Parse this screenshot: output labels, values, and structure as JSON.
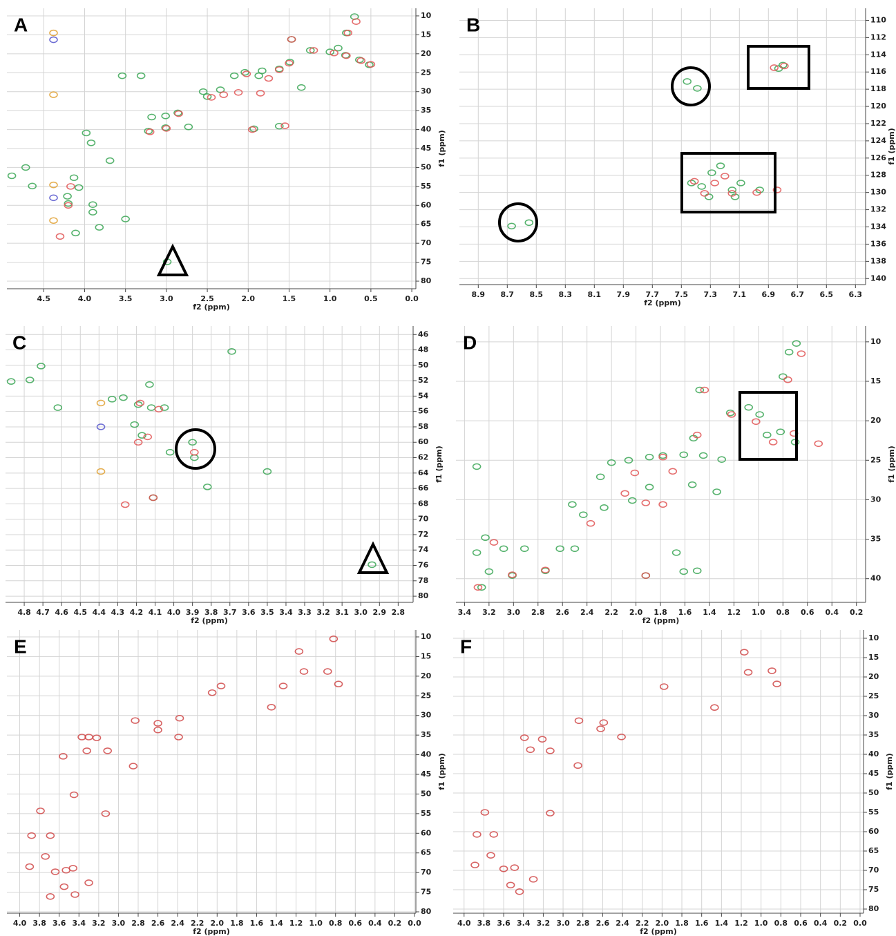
{
  "chart_data": [
    {
      "type": "scatter",
      "label": "A",
      "xlabel": "f2 (ppm)",
      "ylabel": "f1 (ppm)",
      "grid": true,
      "xlim": [
        4.95,
        -0.05
      ],
      "ylim": [
        8,
        82
      ],
      "xticks": [
        4.5,
        {
          "value": 4,
          "label": "4.0"
        },
        3.5,
        {
          "value": 3,
          "label": "3.0"
        },
        2.5,
        {
          "value": 2,
          "label": "2.0"
        },
        1.5,
        {
          "value": 1,
          "label": "1.0"
        },
        0.5,
        {
          "value": 0,
          "label": "0.0"
        }
      ],
      "yticks": [
        10,
        15,
        20,
        25,
        30,
        35,
        40,
        45,
        50,
        55,
        60,
        65,
        70,
        75,
        80
      ],
      "series": [
        {
          "color": "#3aa655",
          "x": [
            0.7,
            0.8,
            1.47,
            1.24,
            1.0,
            0.9,
            0.81,
            0.64,
            0.52,
            1.49,
            1.62,
            1.83,
            2.04,
            2.17,
            2.34,
            2.5,
            2.55,
            2.86,
            3.01,
            3.18,
            3.22,
            3.01,
            2.73,
            1.87,
            1.93,
            1.62,
            3.98,
            3.92,
            3.69,
            4.72,
            4.89,
            4.64,
            4.13,
            4.07,
            4.21,
            4.2,
            3.9,
            3.9,
            3.82,
            3.5,
            4.11,
            3.54,
            3.31,
            1.35,
            2.99
          ],
          "values": [
            10.2,
            14.5,
            16.2,
            19.1,
            19.5,
            18.5,
            20.4,
            21.6,
            22.9,
            22.2,
            24,
            24.5,
            24.9,
            25.8,
            29.5,
            31.3,
            30,
            35.6,
            36.4,
            36.7,
            40.4,
            39.5,
            39.3,
            25.8,
            39.8,
            39.1,
            40.9,
            43.5,
            48.2,
            50,
            52.2,
            54.9,
            52.7,
            55.3,
            57.6,
            59.5,
            59.8,
            61.8,
            65.8,
            63.6,
            67.3,
            25.8,
            25.8,
            28.9,
            74.9
          ]
        },
        {
          "color": "#e05555",
          "x": [
            0.68,
            0.78,
            1.47,
            1.2,
            0.95,
            0.8,
            0.62,
            0.5,
            1.5,
            1.62,
            1.75,
            2.02,
            2.3,
            2.45,
            2.85,
            3.0,
            3.2,
            1.95,
            1.55,
            4.17,
            4.2,
            4.3,
            2.12,
            1.85
          ],
          "values": [
            11.5,
            14.5,
            16.2,
            19.1,
            19.8,
            20.5,
            21.8,
            22.8,
            22.5,
            24.2,
            26.5,
            25.3,
            30.8,
            31.5,
            35.8,
            39.7,
            40.6,
            40,
            39,
            55,
            60,
            68.2,
            30.2,
            30.4
          ]
        },
        {
          "color": "#e0a030",
          "x": [
            4.38,
            4.38,
            4.38,
            4.38
          ],
          "values": [
            14.5,
            30.8,
            54.6,
            64
          ]
        },
        {
          "color": "#5555cc",
          "x": [
            4.38,
            4.38
          ],
          "values": [
            16.3,
            58
          ]
        }
      ]
    },
    {
      "type": "scatter",
      "label": "B",
      "xlabel": "f2 (ppm)",
      "ylabel": "f1 (ppm)",
      "grid": true,
      "xlim": [
        9.03,
        6.23
      ],
      "ylim": [
        108.6,
        140.7
      ],
      "xticks": [
        8.9,
        8.7,
        8.5,
        8.3,
        8.1,
        7.9,
        7.7,
        7.5,
        7.3,
        7.1,
        6.9,
        6.7,
        6.5,
        6.3
      ],
      "yticks": [
        110,
        112,
        114,
        116,
        118,
        120,
        122,
        124,
        126,
        128,
        130,
        132,
        134,
        136,
        138,
        140
      ],
      "series": [
        {
          "color": "#3aa655",
          "x": [
            7.46,
            7.39,
            6.8,
            6.83,
            7.23,
            7.29,
            7.43,
            7.36,
            7.31,
            7.15,
            7.13,
            7.09,
            6.96,
            8.67,
            8.55
          ],
          "values": [
            117.1,
            117.9,
            115.2,
            115.6,
            126.9,
            127.7,
            128.9,
            129.3,
            130.5,
            129.7,
            130.5,
            128.9,
            129.7,
            133.9,
            133.5
          ]
        },
        {
          "color": "#e05555",
          "x": [
            6.86,
            6.79,
            7.41,
            7.27,
            7.34,
            7.15,
            6.98,
            6.84,
            7.2
          ],
          "values": [
            115.5,
            115.3,
            128.7,
            128.9,
            130.1,
            130.1,
            130.0,
            129.7,
            128.1
          ]
        }
      ]
    },
    {
      "type": "scatter",
      "label": "C",
      "xlabel": "f2 (ppm)",
      "ylabel": "f1 (ppm)",
      "grid": true,
      "xlim": [
        4.9,
        2.72
      ],
      "ylim": [
        44.9,
        80.8
      ],
      "xticks": [
        4.8,
        4.7,
        4.6,
        4.5,
        4.4,
        4.3,
        4.2,
        4.1,
        {
          "value": 4,
          "label": "4.0"
        },
        3.9,
        3.8,
        3.7,
        3.6,
        3.5,
        3.4,
        3.3,
        3.2,
        3.1,
        {
          "value": 3,
          "label": "3.0"
        },
        2.9,
        2.8
      ],
      "yticks": [
        46,
        48,
        50,
        52,
        54,
        56,
        58,
        60,
        62,
        64,
        66,
        68,
        70,
        72,
        74,
        76,
        78,
        80
      ],
      "series": [
        {
          "color": "#3aa655",
          "x": [
            4.71,
            4.77,
            4.87,
            4.62,
            4.33,
            4.27,
            4.19,
            4.12,
            4.05,
            4.13,
            4.21,
            4.17,
            4.02,
            3.9,
            3.89,
            3.82,
            3.69,
            3.5,
            4.11,
            2.94
          ],
          "values": [
            50.1,
            51.9,
            52.1,
            55.5,
            54.4,
            54.2,
            55.1,
            55.5,
            55.5,
            52.5,
            57.7,
            59.1,
            61.3,
            60,
            62,
            65.8,
            48.2,
            63.8,
            67.2,
            75.9
          ]
        },
        {
          "color": "#e05555",
          "x": [
            4.18,
            4.08,
            4.14,
            4.19,
            3.89,
            4.26,
            4.11
          ],
          "values": [
            54.9,
            55.7,
            59.3,
            60,
            61.3,
            68.1,
            67.2
          ]
        },
        {
          "color": "#e0a030",
          "x": [
            4.39,
            4.39
          ],
          "values": [
            54.9,
            63.8
          ]
        },
        {
          "color": "#5555cc",
          "x": [
            4.39
          ],
          "values": [
            58
          ]
        }
      ]
    },
    {
      "type": "scatter",
      "label": "D",
      "xlabel": "f2 (ppm)",
      "ylabel": "f1 (ppm)",
      "grid": true,
      "xlim": [
        3.47,
        0.125
      ],
      "ylim": [
        8,
        43
      ],
      "xticks": [
        3.4,
        3.2,
        {
          "value": 3,
          "label": "3.0"
        },
        2.8,
        2.6,
        2.4,
        2.2,
        {
          "value": 2,
          "label": "2.0"
        },
        1.8,
        1.6,
        1.4,
        1.2,
        {
          "value": 1,
          "label": "1.0"
        },
        0.8,
        0.6,
        0.4,
        0.2
      ],
      "yticks": [
        10,
        15,
        20,
        25,
        30,
        35,
        40
      ],
      "series": [
        {
          "color": "#3aa655",
          "x": [
            0.69,
            0.75,
            0.8,
            1.48,
            1.23,
            1.08,
            0.99,
            0.93,
            0.82,
            0.7,
            1.53,
            1.45,
            1.3,
            1.61,
            1.78,
            1.89,
            2.06,
            2.2,
            2.29,
            1.54,
            1.34,
            1.89,
            2.03,
            2.26,
            2.52,
            2.43,
            3.3,
            3.23,
            3.3,
            3.08,
            2.91,
            2.62,
            2.5,
            3.2,
            3.26,
            2.74,
            1.67,
            1.61,
            1.92,
            1.5,
            3.01
          ],
          "values": [
            10.2,
            11.3,
            14.4,
            16.1,
            19,
            18.3,
            19.2,
            21.8,
            21.4,
            22.7,
            22.2,
            24.4,
            24.9,
            24.3,
            24.4,
            24.6,
            25,
            25.3,
            27.1,
            28.1,
            29,
            28.4,
            30.1,
            31,
            30.6,
            31.9,
            25.8,
            34.8,
            36.7,
            36.2,
            36.2,
            36.2,
            36.2,
            39.1,
            41.1,
            39,
            36.7,
            39.1,
            39.6,
            39,
            39.6
          ]
        },
        {
          "color": "#e05555",
          "x": [
            0.65,
            0.76,
            1.44,
            1.22,
            1.02,
            0.88,
            0.71,
            0.51,
            1.5,
            1.78,
            2.01,
            1.7,
            1.92,
            1.78,
            2.37,
            2.09,
            3.01,
            3.29,
            3.16,
            2.74,
            1.92
          ],
          "values": [
            11.5,
            14.8,
            16.1,
            19.2,
            20.1,
            22.7,
            21.6,
            22.9,
            21.8,
            24.6,
            26.6,
            26.4,
            30.4,
            30.6,
            33,
            29.2,
            39.5,
            41.1,
            35.4,
            38.9,
            39.6
          ]
        }
      ]
    },
    {
      "type": "scatter",
      "label": "E",
      "xlabel": "f2 (ppm)",
      "ylabel": "f1 (ppm)",
      "grid": true,
      "xlim": [
        4.13,
        -0.014
      ],
      "ylim": [
        8.24,
        80.35
      ],
      "xticks": [
        {
          "value": 4,
          "label": "4.0"
        },
        3.8,
        3.6,
        3.4,
        3.2,
        {
          "value": 3,
          "label": "3.0"
        },
        2.8,
        2.6,
        2.4,
        2.2,
        {
          "value": 2,
          "label": "2.0"
        },
        1.8,
        1.6,
        1.4,
        1.2,
        {
          "value": 1,
          "label": "1.0"
        },
        0.8,
        0.6,
        0.4,
        0.2,
        {
          "value": 0,
          "label": "0.0"
        }
      ],
      "yticks": [
        10,
        15,
        20,
        25,
        30,
        35,
        40,
        45,
        50,
        55,
        60,
        65,
        70,
        75,
        80
      ],
      "series": [
        {
          "color": "#d04848",
          "x": [
            1.17,
            1.12,
            0.88,
            0.77,
            1.96,
            1.33,
            1.45,
            2.83,
            2.38,
            2.6,
            2.6,
            2.39,
            3.37,
            3.3,
            3.22,
            3.32,
            3.11,
            2.85,
            3.56,
            3.45,
            3.13,
            3.79,
            3.88,
            3.69,
            3.74,
            3.9,
            3.64,
            3.53,
            3.46,
            3.55,
            3.3,
            3.44,
            3.69,
            0.82,
            2.05
          ],
          "values": [
            13.7,
            18.8,
            18.8,
            22,
            22.5,
            22.5,
            27.9,
            31.3,
            30.7,
            32,
            33.7,
            35.5,
            35.5,
            35.5,
            35.7,
            39,
            39,
            42.9,
            40.4,
            50.2,
            55,
            54.3,
            60.6,
            60.6,
            65.9,
            68.5,
            69.8,
            69.4,
            68.9,
            73.6,
            72.6,
            75.6,
            76.1,
            10.5,
            24.2
          ]
        }
      ]
    },
    {
      "type": "scatter",
      "label": "F",
      "xlabel": "f2 (ppm)",
      "ylabel": "f1 (ppm)",
      "grid": true,
      "xlim": [
        4.11,
        -0.035
      ],
      "ylim": [
        7.86,
        81.07
      ],
      "xticks": [
        {
          "value": 4,
          "label": "4.0"
        },
        3.8,
        3.6,
        3.4,
        3.2,
        {
          "value": 3,
          "label": "3.0"
        },
        2.8,
        2.6,
        2.4,
        2.2,
        {
          "value": 2,
          "label": "2.0"
        },
        1.8,
        1.6,
        1.4,
        1.2,
        {
          "value": 1,
          "label": "1.0"
        },
        0.8,
        0.6,
        0.4,
        0.2,
        {
          "value": 0,
          "label": "0.0"
        }
      ],
      "yticks": [
        10,
        15,
        20,
        25,
        30,
        35,
        40,
        45,
        50,
        55,
        60,
        65,
        70,
        75,
        80
      ],
      "series": [
        {
          "color": "#d04848",
          "x": [
            1.17,
            1.13,
            0.89,
            0.84,
            1.98,
            1.47,
            2.84,
            2.59,
            2.62,
            2.41,
            3.39,
            3.21,
            3.33,
            3.13,
            2.85,
            3.13,
            3.79,
            3.87,
            3.7,
            3.73,
            3.89,
            3.6,
            3.49,
            3.53,
            3.3,
            3.44
          ],
          "values": [
            13.6,
            18.8,
            18.4,
            21.8,
            22.5,
            27.9,
            31.3,
            31.8,
            33.4,
            35.5,
            35.7,
            36.1,
            38.8,
            39.1,
            42.9,
            55.2,
            55,
            60.7,
            60.7,
            66.1,
            68.6,
            69.6,
            69.3,
            73.8,
            72.3,
            75.5
          ]
        }
      ]
    }
  ]
}
